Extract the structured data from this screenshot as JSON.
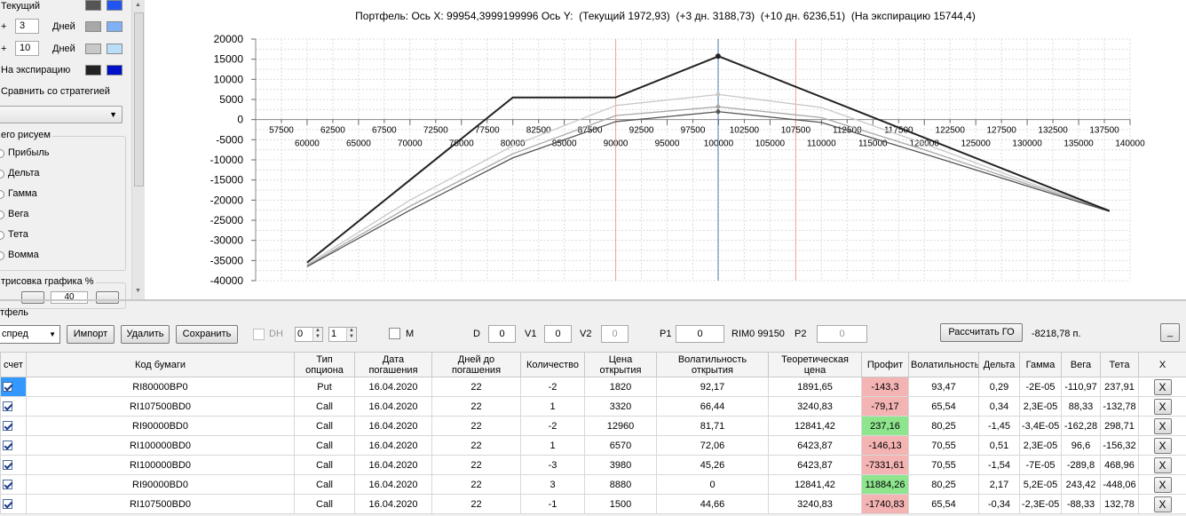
{
  "sidebar": {
    "current_label": "Текущий",
    "plus1": {
      "sign": "+",
      "value": "3",
      "unit": "Дней"
    },
    "plus2": {
      "sign": "+",
      "value": "10",
      "unit": "Дней"
    },
    "expiry_label": "На экспирацию",
    "compare_label": "Сравнить со стратегией",
    "group_title": "его рисуем",
    "radio_items": [
      "Прибыль",
      "Дельта",
      "Гамма",
      "Вега",
      "Тета",
      "Вомма"
    ],
    "draw_label": "трисовка графика %",
    "draw_value": "40",
    "swatches": {
      "current": [
        "#555555",
        "#2255ee"
      ],
      "plus1": [
        "#a8a8a8",
        "#7fb0f5"
      ],
      "plus2": [
        "#c8c8c8",
        "#b8def8"
      ],
      "expiry": [
        "#222222",
        "#0010c8"
      ]
    }
  },
  "chart": {
    "title": "Портфель: Ось X: 99954,3999199996 Ось Y:  (Текущий 1972,93)  (+3 дн. 3188,73)  (+10 дн. 6236,51)  (На экспирацию 15744,4)"
  },
  "chart_data": {
    "type": "line",
    "x_axis_top_ticks": [
      "57500",
      "62500",
      "67500",
      "72500",
      "77500",
      "82500",
      "87500",
      "92500",
      "97500",
      "102500",
      "107500",
      "112500",
      "117500",
      "122500",
      "127500",
      "132500",
      "137500"
    ],
    "x_axis_bottom_ticks": [
      "60000",
      "65000",
      "70000",
      "75000",
      "80000",
      "85000",
      "90000",
      "95000",
      "100000",
      "105000",
      "110000",
      "115000",
      "120000",
      "125000",
      "130000",
      "135000",
      "140000"
    ],
    "y_ticks": [
      "20000",
      "15000",
      "10000",
      "5000",
      "0",
      "-5000",
      "-10000",
      "-15000",
      "-20000",
      "-25000",
      "-30000",
      "-35000",
      "-40000"
    ],
    "xlim": [
      55000,
      140000
    ],
    "ylim": [
      -40000,
      20000
    ],
    "cursor_x": 99954.4,
    "vertical_marks": [
      90000,
      107500
    ],
    "grid": true,
    "series": [
      {
        "name": "На экспирацию",
        "color": "#222222",
        "x": [
          60000,
          80000,
          90000,
          100000,
          138000
        ],
        "y": [
          -35500,
          5500,
          5500,
          15744,
          -22700
        ]
      },
      {
        "name": "+10 дн.",
        "color": "#c8c8c8",
        "x": [
          60000,
          70000,
          80000,
          90000,
          100000,
          110000,
          120000,
          130000,
          138000
        ],
        "y": [
          -36000,
          -20000,
          -6500,
          3500,
          6236,
          3000,
          -6000,
          -15500,
          -22500
        ]
      },
      {
        "name": "+3 дн.",
        "color": "#a8a8a8",
        "x": [
          60000,
          70000,
          80000,
          90000,
          100000,
          110000,
          120000,
          130000,
          138000
        ],
        "y": [
          -36300,
          -21500,
          -8500,
          1000,
          3189,
          500,
          -7500,
          -16000,
          -22600
        ]
      },
      {
        "name": "Текущий",
        "color": "#555555",
        "x": [
          60000,
          70000,
          80000,
          90000,
          100000,
          110000,
          120000,
          130000,
          138000
        ],
        "y": [
          -36500,
          -22500,
          -9500,
          -500,
          1973,
          -700,
          -8500,
          -16500,
          -22800
        ]
      }
    ]
  },
  "portfolio": {
    "label": "тфель",
    "strategy_select": "спред",
    "import_btn": "Импорт",
    "delete_btn": "Удалить",
    "save_btn": "Сохранить",
    "dh_label": "DH",
    "spin1": "0",
    "spin2": "1",
    "m_label": "M",
    "d_label": "D",
    "d_value": "0",
    "v1_label": "V1",
    "v1_value": "0",
    "v2_label": "V2",
    "v2_value": "0",
    "p1_label": "P1",
    "p1_value": "0",
    "rim_label": "RIM0 99150",
    "p2_label": "P2",
    "p2_value": "0",
    "calc_btn": "Рассчитать ГО",
    "go_value": "-8218,78 п.",
    "min_btn": "_"
  },
  "table": {
    "columns": [
      "счет",
      "Код бумаги",
      "Тип опциона",
      "Дата погашения",
      "Дней до погашения",
      "Количество",
      "Цена открытия",
      "Волатильность открытия",
      "Теоретическая цена",
      "Профит",
      "Волатильность",
      "Дельта",
      "Гамма",
      "Вега",
      "Тета",
      "X"
    ],
    "rows": [
      {
        "code": "RI80000BP0",
        "type": "Put",
        "date": "16.04.2020",
        "days": "22",
        "qty": "-2",
        "open": "1820",
        "vol_open": "92,17",
        "theo": "1891,65",
        "profit": "-143,3",
        "profit_sign": "neg",
        "vol": "93,47",
        "delta": "0,29",
        "gamma": "-2E-05",
        "vega": "-110,97",
        "theta": "237,91",
        "x": "X"
      },
      {
        "code": "RI107500BD0",
        "type": "Call",
        "date": "16.04.2020",
        "days": "22",
        "qty": "1",
        "open": "3320",
        "vol_open": "66,44",
        "theo": "3240,83",
        "profit": "-79,17",
        "profit_sign": "neg",
        "vol": "65,54",
        "delta": "0,34",
        "gamma": "2,3E-05",
        "vega": "88,33",
        "theta": "-132,78",
        "x": "X"
      },
      {
        "code": "RI90000BD0",
        "type": "Call",
        "date": "16.04.2020",
        "days": "22",
        "qty": "-2",
        "open": "12960",
        "vol_open": "81,71",
        "theo": "12841,42",
        "profit": "237,16",
        "profit_sign": "pos",
        "vol": "80,25",
        "delta": "-1,45",
        "gamma": "-3,4E-05",
        "vega": "-162,28",
        "theta": "298,71",
        "x": "X"
      },
      {
        "code": "RI100000BD0",
        "type": "Call",
        "date": "16.04.2020",
        "days": "22",
        "qty": "1",
        "open": "6570",
        "vol_open": "72,06",
        "theo": "6423,87",
        "profit": "-146,13",
        "profit_sign": "neg",
        "vol": "70,55",
        "delta": "0,51",
        "gamma": "2,3E-05",
        "vega": "96,6",
        "theta": "-156,32",
        "x": "X"
      },
      {
        "code": "RI100000BD0",
        "type": "Call",
        "date": "16.04.2020",
        "days": "22",
        "qty": "-3",
        "open": "3980",
        "vol_open": "45,26",
        "theo": "6423,87",
        "profit": "-7331,61",
        "profit_sign": "neg",
        "vol": "70,55",
        "delta": "-1,54",
        "gamma": "-7E-05",
        "vega": "-289,8",
        "theta": "468,96",
        "x": "X"
      },
      {
        "code": "RI90000BD0",
        "type": "Call",
        "date": "16.04.2020",
        "days": "22",
        "qty": "3",
        "open": "8880",
        "vol_open": "0",
        "theo": "12841,42",
        "profit": "11884,26",
        "profit_sign": "pos",
        "vol": "80,25",
        "delta": "2,17",
        "gamma": "5,2E-05",
        "vega": "243,42",
        "theta": "-448,06",
        "x": "X"
      },
      {
        "code": "RI107500BD0",
        "type": "Call",
        "date": "16.04.2020",
        "days": "22",
        "qty": "-1",
        "open": "1500",
        "vol_open": "44,66",
        "theo": "3240,83",
        "profit": "-1740,83",
        "profit_sign": "neg",
        "vol": "65,54",
        "delta": "-0,34",
        "gamma": "-2,3E-05",
        "vega": "-88,33",
        "theta": "132,78",
        "x": "X"
      }
    ]
  }
}
